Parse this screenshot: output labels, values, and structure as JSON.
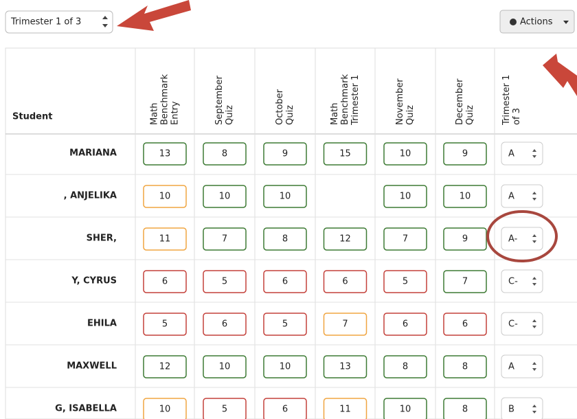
{
  "header": {
    "term_select": "Trimester 1 of 3",
    "actions_button": "Actions"
  },
  "table": {
    "student_header": "Student",
    "columns": [
      [
        "Math",
        "Benchmark",
        "Entry"
      ],
      [
        "September",
        "Quiz"
      ],
      [
        "October",
        "Quiz"
      ],
      [
        "Math",
        "Benchmark",
        "Trimester 1"
      ],
      [
        "November",
        "Quiz"
      ],
      [
        "December",
        "Quiz"
      ]
    ],
    "grade_header": [
      "Trimester 1",
      "of 3"
    ],
    "rows": [
      {
        "student": "MARIANA",
        "scores": [
          13,
          8,
          9,
          15,
          10,
          9
        ],
        "colors": [
          "#3d7a34",
          "#3d7a34",
          "#3d7a34",
          "#3d7a34",
          "#3d7a34",
          "#3d7a34"
        ],
        "grade": "A"
      },
      {
        "student": ", ANJELIKA",
        "scores": [
          10,
          10,
          10,
          null,
          10,
          10
        ],
        "colors": [
          "#f0a540",
          "#3d7a34",
          "#3d7a34",
          null,
          "#3d7a34",
          "#3d7a34"
        ],
        "grade": "A"
      },
      {
        "student": "SHER,",
        "scores": [
          11,
          7,
          8,
          12,
          7,
          9
        ],
        "colors": [
          "#f0a540",
          "#3d7a34",
          "#3d7a34",
          "#3d7a34",
          "#3d7a34",
          "#3d7a34"
        ],
        "grade": "A-"
      },
      {
        "student": "Y, CYRUS",
        "scores": [
          6,
          5,
          6,
          6,
          5,
          7
        ],
        "colors": [
          "#c4403a",
          "#c4403a",
          "#c4403a",
          "#c4403a",
          "#c4403a",
          "#3d7a34"
        ],
        "grade": "C-"
      },
      {
        "student": "EHILA",
        "scores": [
          5,
          6,
          5,
          7,
          6,
          6
        ],
        "colors": [
          "#c4403a",
          "#c4403a",
          "#c4403a",
          "#f0a540",
          "#c4403a",
          "#c4403a"
        ],
        "grade": "C-"
      },
      {
        "student": "MAXWELL",
        "scores": [
          12,
          10,
          10,
          13,
          8,
          8
        ],
        "colors": [
          "#3d7a34",
          "#3d7a34",
          "#3d7a34",
          "#3d7a34",
          "#3d7a34",
          "#3d7a34"
        ],
        "grade": "A"
      },
      {
        "student": "G, ISABELLA",
        "scores": [
          10,
          5,
          6,
          11,
          10,
          8
        ],
        "colors": [
          "#f0a540",
          "#c4403a",
          "#c4403a",
          "#f0a540",
          "#3d7a34",
          "#3d7a34"
        ],
        "grade": "B"
      }
    ]
  }
}
